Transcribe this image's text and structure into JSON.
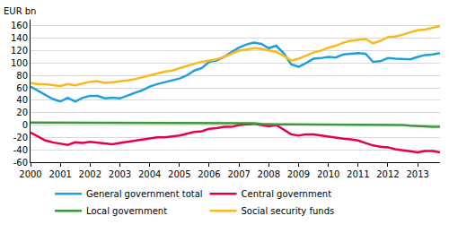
{
  "chart_data": {
    "type": "line",
    "ylabel": "EUR bn",
    "categories": [
      "2000",
      null,
      null,
      null,
      "2001",
      null,
      null,
      null,
      "2002",
      null,
      null,
      null,
      "2003",
      null,
      null,
      null,
      "2004",
      null,
      null,
      null,
      "2005",
      null,
      null,
      null,
      "2006",
      null,
      null,
      null,
      "2007",
      null,
      null,
      null,
      "2008",
      null,
      null,
      null,
      "2009",
      null,
      null,
      null,
      "2010",
      null,
      null,
      null,
      "2011",
      null,
      null,
      null,
      "2012",
      null,
      null,
      null,
      "2013",
      null,
      null,
      null
    ],
    "series": [
      {
        "name": "General government total",
        "color": "#1ea0dc",
        "values": [
          62,
          55,
          48,
          42,
          38,
          44,
          38,
          44,
          47,
          47,
          43,
          44,
          43,
          48,
          52,
          56,
          62,
          66,
          69,
          72,
          75,
          80,
          88,
          92,
          102,
          104,
          110,
          118,
          125,
          130,
          133,
          131,
          124,
          128,
          116,
          98,
          94,
          100,
          107,
          108,
          110,
          109,
          114,
          115,
          116,
          115,
          102,
          103,
          108,
          107,
          106,
          106,
          110,
          113,
          114,
          116
        ]
      },
      {
        "name": "Central government",
        "color": "#e4004f",
        "values": [
          -12,
          -18,
          -25,
          -28,
          -30,
          -32,
          -28,
          -29,
          -27,
          -28,
          -30,
          -31,
          -29,
          -27,
          -25,
          -23,
          -22,
          -20,
          -20,
          -19,
          -17,
          -14,
          -11,
          -10,
          -6,
          -5,
          -3,
          -3,
          0,
          1,
          2,
          0,
          -2,
          0,
          -8,
          -15,
          -17,
          -15,
          -15,
          -17,
          -19,
          -21,
          -22,
          -23,
          -25,
          -29,
          -33,
          -35,
          -36,
          -39,
          -41,
          -43,
          -44,
          -42,
          -42,
          -44
        ]
      },
      {
        "name": "Local government",
        "color": "#3a9a3a",
        "values": [
          4,
          4,
          4,
          4,
          4,
          4,
          4,
          4,
          4,
          4,
          4,
          4,
          4,
          4,
          3,
          3,
          3,
          3,
          3,
          3,
          3,
          3,
          3,
          3,
          3,
          4,
          3,
          3,
          3,
          3,
          3,
          2,
          1,
          1,
          1,
          1,
          1,
          1,
          1,
          0,
          0,
          0,
          0,
          0,
          0,
          1,
          1,
          1,
          1,
          1,
          0,
          -1,
          -2,
          -2,
          -3,
          -3
        ]
      },
      {
        "name": "Social security funds",
        "color": "#f7b91c",
        "values": [
          68,
          66,
          66,
          65,
          63,
          66,
          64,
          67,
          70,
          71,
          68,
          69,
          70,
          72,
          74,
          77,
          81,
          83,
          86,
          88,
          92,
          96,
          99,
          102,
          104,
          106,
          110,
          115,
          120,
          122,
          124,
          123,
          120,
          118,
          112,
          104,
          107,
          112,
          117,
          120,
          125,
          128,
          133,
          136,
          138,
          139,
          132,
          136,
          142,
          143,
          146,
          150,
          153,
          154,
          157,
          160
        ]
      }
    ],
    "ylim": [
      -60,
      170
    ],
    "yticks": [
      -60,
      -40,
      -20,
      0,
      20,
      40,
      60,
      80,
      100,
      120,
      140,
      160
    ],
    "grid": true,
    "legend": "bottom"
  }
}
